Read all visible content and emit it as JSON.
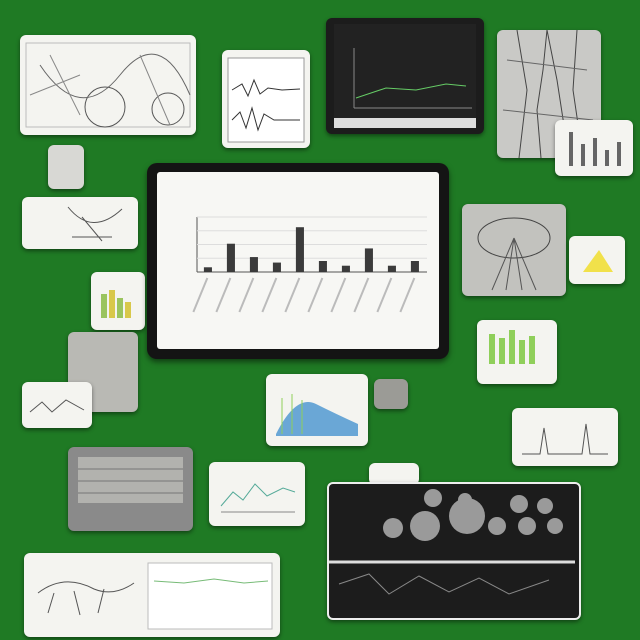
{
  "colors": {
    "background": "#1f7a24",
    "card": "#f4f4f0",
    "tablet_frame": "#141414",
    "bar": "#3b3b3b",
    "accent_green": "#8fcf5a",
    "accent_yellow": "#f1e14a",
    "accent_blue": "#6aa7d6"
  },
  "chart_data": {
    "type": "bar",
    "values": [
      6,
      36,
      19,
      12,
      57,
      14,
      8,
      30,
      8,
      14
    ],
    "ylim": [
      0,
      70
    ]
  }
}
